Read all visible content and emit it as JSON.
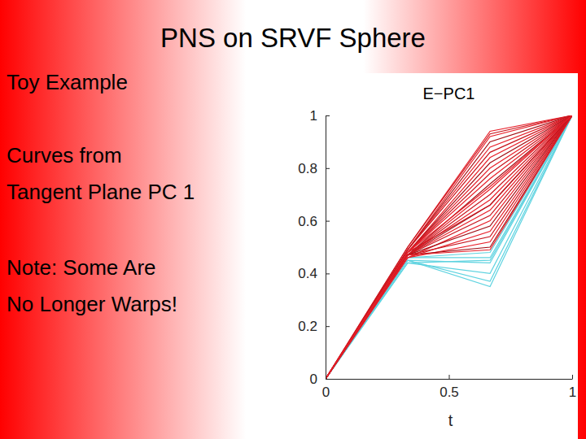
{
  "slide": {
    "title": "PNS on SRVF Sphere",
    "bullets": [
      [
        "Toy Example"
      ],
      [
        "Curves from",
        "Tangent Plane PC 1"
      ],
      [
        "Note:  Some Are",
        "No Longer Warps!"
      ]
    ]
  },
  "chart_data": {
    "type": "line",
    "title": "E−PC1",
    "x_label": "t",
    "x": [
      0,
      0.333,
      0.667,
      1
    ],
    "xlim": [
      0,
      1
    ],
    "ylim": [
      0,
      1
    ],
    "xticks": [
      0,
      0.5,
      1
    ],
    "yticks": [
      0,
      0.2,
      0.4,
      0.6,
      0.8,
      1
    ],
    "series": [
      {
        "color": "#5fd3e0",
        "values": [
          0,
          0.46,
          0.46,
          1
        ]
      },
      {
        "color": "#5fd3e0",
        "values": [
          0,
          0.45,
          0.44,
          1
        ]
      },
      {
        "color": "#5fd3e0",
        "values": [
          0,
          0.44,
          0.4,
          1
        ]
      },
      {
        "color": "#5fd3e0",
        "values": [
          0,
          0.45,
          0.37,
          1
        ]
      },
      {
        "color": "#5fd3e0",
        "values": [
          0,
          0.45,
          0.35,
          1
        ]
      },
      {
        "color": "#5fd3e0",
        "values": [
          0,
          0.44,
          0.45,
          1
        ]
      },
      {
        "color": "#5fd3e0",
        "values": [
          0,
          0.46,
          0.48,
          1
        ]
      },
      {
        "color": "#e8202a",
        "values": [
          0,
          0.5,
          0.94,
          1
        ]
      },
      {
        "color": "#c8161e",
        "values": [
          0,
          0.5,
          0.93,
          1
        ]
      },
      {
        "color": "#e8202a",
        "values": [
          0,
          0.49,
          0.92,
          1
        ]
      },
      {
        "color": "#a31218",
        "values": [
          0,
          0.49,
          0.9,
          1
        ]
      },
      {
        "color": "#e8202a",
        "values": [
          0,
          0.49,
          0.88,
          1
        ]
      },
      {
        "color": "#c8161e",
        "values": [
          0,
          0.49,
          0.86,
          1
        ]
      },
      {
        "color": "#e8202a",
        "values": [
          0,
          0.48,
          0.84,
          1
        ]
      },
      {
        "color": "#a31218",
        "values": [
          0,
          0.48,
          0.82,
          1
        ]
      },
      {
        "color": "#e8202a",
        "values": [
          0,
          0.48,
          0.8,
          1
        ]
      },
      {
        "color": "#c8161e",
        "values": [
          0,
          0.48,
          0.78,
          1
        ]
      },
      {
        "color": "#e8202a",
        "values": [
          0,
          0.48,
          0.76,
          1
        ]
      },
      {
        "color": "#a31218",
        "values": [
          0,
          0.47,
          0.74,
          1
        ]
      },
      {
        "color": "#e8202a",
        "values": [
          0,
          0.47,
          0.72,
          1
        ]
      },
      {
        "color": "#c8161e",
        "values": [
          0,
          0.47,
          0.7,
          1
        ]
      },
      {
        "color": "#e8202a",
        "values": [
          0,
          0.47,
          0.68,
          1
        ]
      },
      {
        "color": "#a31218",
        "values": [
          0,
          0.47,
          0.66,
          1
        ]
      },
      {
        "color": "#e8202a",
        "values": [
          0,
          0.47,
          0.64,
          1
        ]
      },
      {
        "color": "#c8161e",
        "values": [
          0,
          0.47,
          0.62,
          1
        ]
      },
      {
        "color": "#e8202a",
        "values": [
          0,
          0.46,
          0.6,
          1
        ]
      },
      {
        "color": "#a31218",
        "values": [
          0,
          0.47,
          0.58,
          1
        ]
      },
      {
        "color": "#e8202a",
        "values": [
          0,
          0.46,
          0.56,
          1
        ]
      },
      {
        "color": "#c8161e",
        "values": [
          0,
          0.47,
          0.54,
          1
        ]
      },
      {
        "color": "#e8202a",
        "values": [
          0,
          0.46,
          0.52,
          1
        ]
      },
      {
        "color": "#a31218",
        "values": [
          0,
          0.47,
          0.5,
          1
        ]
      },
      {
        "color": "#e8202a",
        "values": [
          0,
          0.47,
          0.49,
          1
        ]
      },
      {
        "color": "#c8161e",
        "values": [
          0,
          0.48,
          0.66,
          1
        ]
      },
      {
        "color": "#e8202a",
        "values": [
          0,
          0.48,
          0.73,
          1
        ]
      }
    ]
  }
}
